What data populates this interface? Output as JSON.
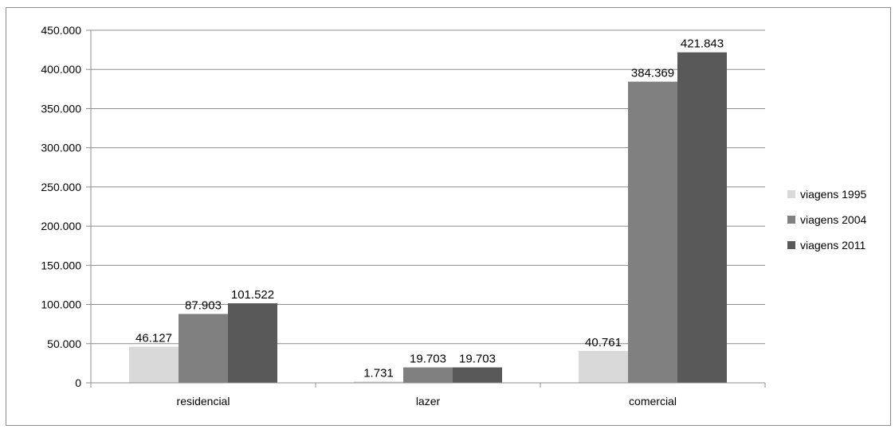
{
  "chart_data": {
    "type": "bar",
    "title": "",
    "xlabel": "",
    "ylabel": "",
    "categories": [
      "residencial",
      "lazer",
      "comercial"
    ],
    "series": [
      {
        "name": "viagens 1995",
        "values": [
          46127,
          1731,
          40761
        ],
        "labels": [
          "46.127",
          "1.731",
          "40.761"
        ],
        "color": "#d9d9d9"
      },
      {
        "name": "viagens 2004",
        "values": [
          87903,
          19703,
          384369
        ],
        "labels": [
          "87.903",
          "19.703",
          "384.369"
        ],
        "color": "#808080"
      },
      {
        "name": "viagens 2011",
        "values": [
          101522,
          19703,
          421843
        ],
        "labels": [
          "101.522",
          "19.703",
          "421.843"
        ],
        "color": "#595959"
      }
    ],
    "ylim": [
      0,
      450000
    ],
    "yticks": [
      0,
      50000,
      100000,
      150000,
      200000,
      250000,
      300000,
      350000,
      400000,
      450000
    ],
    "ytick_labels": [
      "0",
      "50.000",
      "100.000",
      "150.000",
      "200.000",
      "250.000",
      "300.000",
      "350.000",
      "400.000",
      "450.000"
    ],
    "grid": true,
    "legend_position": "right"
  }
}
